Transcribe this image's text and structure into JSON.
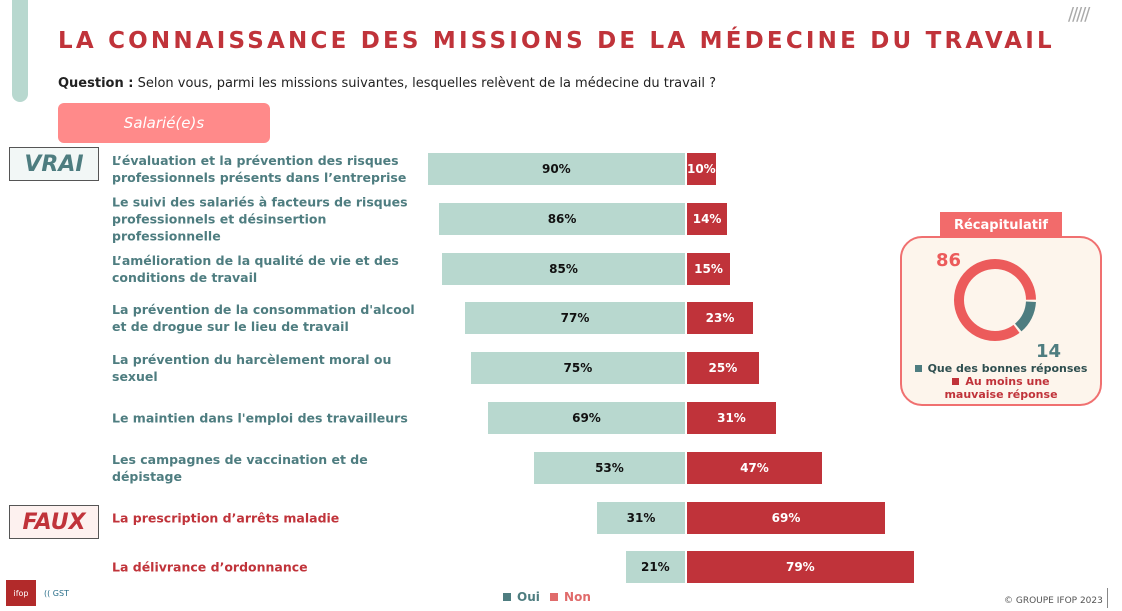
{
  "title": "LA CONNAISSANCE DES MISSIONS DE LA MÉDECINE DU TRAVAIL",
  "question": {
    "label": "Question :",
    "text": " Selon vous, parmi les missions suivantes, lesquelles relèvent de la médecine du travail ?"
  },
  "segment": "Salarié(e)s",
  "tags": {
    "vrai": "VRAI",
    "faux": "FAUX"
  },
  "colors": {
    "oui": "#b8d8cf",
    "non": "#c0333a",
    "vrai_text": "#4e7d80",
    "faux_text": "#c0333a",
    "recap": "#f26b6b"
  },
  "chart_data": {
    "type": "bar",
    "orientation": "horizontal-diverging",
    "categories": [
      "L’évaluation et la prévention des risques professionnels présents dans l’entreprise",
      "Le suivi des salariés à facteurs de risques professionnels et désinsertion professionnelle",
      "L’amélioration de la qualité de vie et des conditions de travail",
      "La prévention de la consommation d'alcool et de drogue sur le lieu de travail",
      "La prévention du harcèlement moral ou sexuel",
      "Le maintien dans l'emploi des travailleurs",
      "Les campagnes de vaccination et de dépistage",
      "La prescription d’arrêts maladie",
      "La délivrance d’ordonnance"
    ],
    "groups": [
      "vrai",
      "vrai",
      "vrai",
      "vrai",
      "vrai",
      "vrai",
      "vrai",
      "faux",
      "faux"
    ],
    "series": [
      {
        "name": "Oui",
        "values": [
          90,
          86,
          85,
          77,
          75,
          69,
          53,
          31,
          21
        ]
      },
      {
        "name": "Non",
        "values": [
          10,
          14,
          15,
          23,
          25,
          31,
          47,
          69,
          79
        ]
      }
    ],
    "unit": "%",
    "legend": "bottom"
  },
  "recap": {
    "title": "Récapitulatif",
    "type": "pie",
    "values": [
      {
        "name": "Que des bonnes réponses",
        "value": 14,
        "color": "#4e7d80"
      },
      {
        "name": "Au moins une mauvaise réponse",
        "value": 86,
        "color": "#ec5b5b"
      }
    ],
    "label_bad": "86",
    "label_good": "14",
    "legend_good": "Que des bonnes réponses",
    "legend_bad": "Au moins une mauvaise réponse"
  },
  "footer": {
    "copyright": "© GROUPE IFOP 2023",
    "logo_ifop": "ifop",
    "logo_gst": "GST"
  }
}
